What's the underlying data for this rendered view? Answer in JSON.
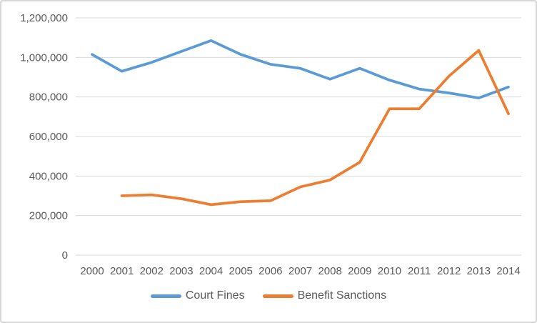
{
  "chart_data": {
    "type": "line",
    "title": "",
    "xlabel": "",
    "ylabel": "",
    "categories": [
      "2000",
      "2001",
      "2002",
      "2003",
      "2004",
      "2005",
      "2006",
      "2007",
      "2008",
      "2009",
      "2010",
      "2011",
      "2012",
      "2013",
      "2014"
    ],
    "series": [
      {
        "name": "Court Fines",
        "color": "#5B9BD5",
        "values": [
          1015000,
          930000,
          975000,
          1030000,
          1085000,
          1015000,
          965000,
          945000,
          890000,
          945000,
          885000,
          840000,
          820000,
          795000,
          850000
        ]
      },
      {
        "name": "Benefit Sanctions",
        "color": "#ED7D31",
        "values": [
          null,
          300000,
          305000,
          285000,
          255000,
          270000,
          275000,
          345000,
          380000,
          470000,
          740000,
          740000,
          905000,
          1035000,
          715000
        ]
      }
    ],
    "ylim": [
      0,
      1200000
    ],
    "ytick_interval": 200000,
    "ytick_labels": [
      "0",
      "200,000",
      "400,000",
      "600,000",
      "800,000",
      "1,000,000",
      "1,200,000"
    ],
    "grid": "horizontal",
    "legend_position": "bottom",
    "colors": {
      "axis_text": "#595959",
      "gridline": "#D9D9D9",
      "background": "#FFFFFF",
      "frame_border": "#D7D7D7"
    }
  }
}
